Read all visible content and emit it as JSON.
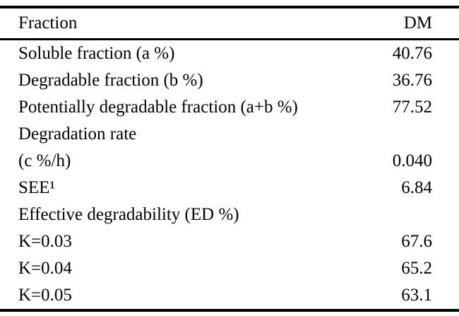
{
  "table": {
    "header": {
      "fraction": "Fraction",
      "dm": "DM"
    },
    "rows": [
      {
        "label": "Soluble fraction (a %)",
        "value": "40.76"
      },
      {
        "label": "Degradable fraction (b %)",
        "value": "36.76"
      },
      {
        "label": "Potentially degradable fraction (a+b %)",
        "value": "77.52"
      },
      {
        "label": "Degradation rate",
        "value": ""
      },
      {
        "label": "(c %/h)",
        "value": "0.040"
      },
      {
        "label": "SEE¹",
        "value": "6.84"
      },
      {
        "label": "Effective degradability  (ED %)",
        "value": ""
      },
      {
        "label": "K=0.03",
        "value": "67.6"
      },
      {
        "label": "K=0.04",
        "value": "65.2"
      },
      {
        "label": "K=0.05",
        "value": "63.1"
      }
    ]
  }
}
